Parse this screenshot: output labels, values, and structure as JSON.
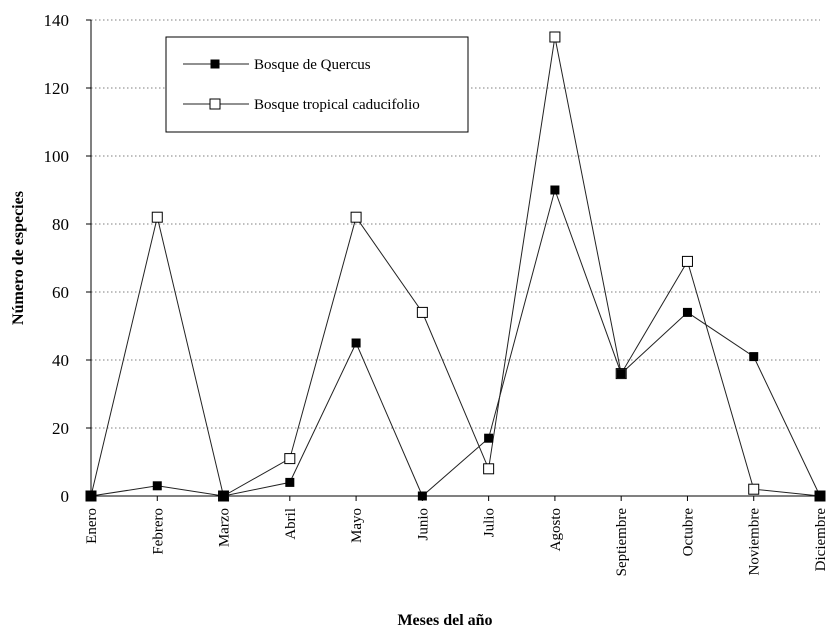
{
  "chart_data": {
    "type": "line",
    "title": "",
    "xlabel": "Meses del año",
    "ylabel": "Número de especies",
    "categories": [
      "Enero",
      "Febrero",
      "Marzo",
      "Abril",
      "Mayo",
      "Junio",
      "Julio",
      "Agosto",
      "Septiembre",
      "Octubre",
      "Noviembre",
      "Diciembre"
    ],
    "ylim": [
      0,
      140
    ],
    "yticks": [
      "0",
      "20",
      "40",
      "60",
      "80",
      "100",
      "120",
      "140"
    ],
    "grid": true,
    "legend_position": "top-left",
    "series": [
      {
        "name": "Bosque de Quercus",
        "marker": "filled-square",
        "color": "#000000",
        "values": [
          0,
          3,
          0,
          4,
          45,
          0,
          17,
          90,
          36,
          54,
          41,
          0
        ]
      },
      {
        "name": "Bosque tropical caducifolio",
        "marker": "open-square",
        "color": "#000000",
        "values": [
          0,
          82,
          0,
          11,
          82,
          54,
          8,
          135,
          36,
          69,
          2,
          0
        ]
      }
    ]
  }
}
